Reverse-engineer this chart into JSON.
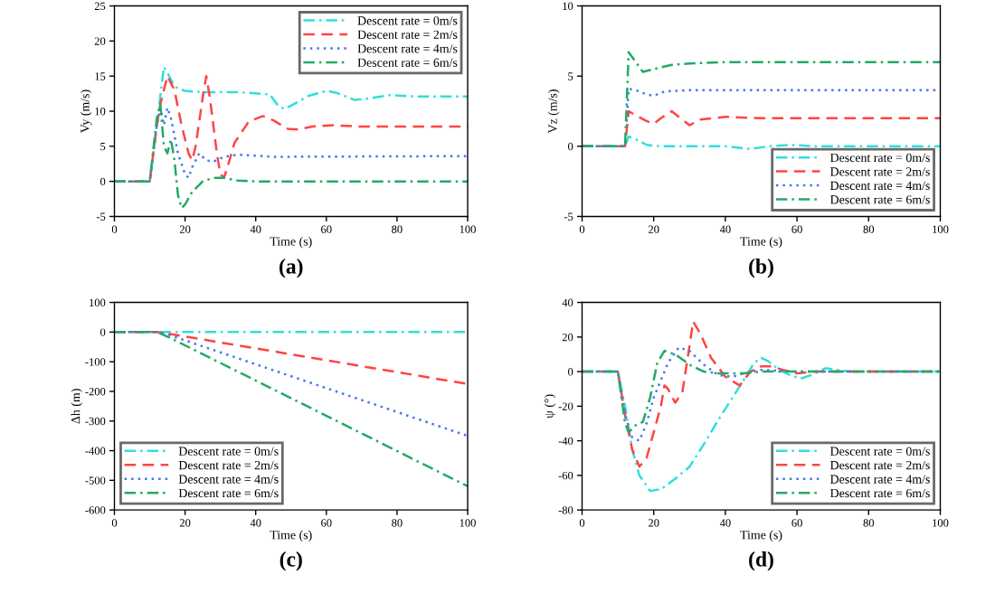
{
  "chart_data": [
    {
      "type": "line",
      "title": "(a)",
      "xlabel": "Time (s)",
      "ylabel": "Vy (m/s)",
      "xlim": [
        0,
        100
      ],
      "xticks": [
        0,
        20,
        40,
        60,
        80,
        100
      ],
      "ylim": [
        -5,
        25
      ],
      "yticks": [
        -5,
        0,
        5,
        10,
        15,
        20,
        25
      ],
      "grid": false,
      "legend": "top right",
      "series": [
        {
          "name": "Descent rate = 0m/s",
          "color": "#33dddd",
          "line_style": "dashdot",
          "x": [
            0,
            10,
            12,
            14,
            15,
            17,
            20,
            25,
            35,
            44,
            46,
            48,
            50,
            55,
            60,
            63,
            68,
            72,
            78,
            85,
            100
          ],
          "values": [
            0,
            0,
            8,
            16.3,
            15.5,
            13.5,
            12.9,
            12.7,
            12.7,
            12.4,
            11,
            10.3,
            10.8,
            12.2,
            12.9,
            12.6,
            11.6,
            11.8,
            12.3,
            12.1,
            12.1
          ]
        },
        {
          "name": "Descent rate = 2m/s",
          "color": "#ff4444",
          "line_style": "dashed",
          "x": [
            0,
            10,
            12,
            13,
            15,
            17,
            19,
            21,
            22,
            23,
            25,
            26,
            27,
            29,
            30,
            31,
            32,
            34,
            38,
            42,
            45,
            49,
            52,
            56,
            62,
            70,
            100
          ],
          "values": [
            0,
            0,
            8,
            11,
            15,
            13,
            8,
            4,
            3,
            5,
            12,
            15,
            12,
            4,
            1,
            0.5,
            2,
            5.5,
            8.5,
            9.3,
            8.7,
            7.5,
            7.4,
            7.8,
            8,
            7.8,
            7.8
          ]
        },
        {
          "name": "Descent rate = 4m/s",
          "color": "#4477ee",
          "line_style": "dotted",
          "x": [
            0,
            10,
            12,
            13,
            14,
            15,
            16,
            18,
            20,
            21,
            22,
            24,
            26,
            28,
            31,
            35,
            45,
            100
          ],
          "values": [
            0,
            0,
            8,
            10.5,
            8,
            10.5,
            9,
            4,
            1,
            0.5,
            2,
            4,
            3,
            2.8,
            3.5,
            3.8,
            3.5,
            3.6
          ]
        },
        {
          "name": "Descent rate = 6m/s",
          "color": "#22aa66",
          "line_style": "dashdot",
          "x": [
            0,
            10,
            12,
            13,
            14,
            15,
            16,
            17,
            18,
            19,
            20,
            22,
            25,
            28,
            31,
            35,
            40,
            100
          ],
          "values": [
            0,
            0,
            9,
            11,
            5,
            4,
            6,
            3,
            -2,
            -3.8,
            -3.3,
            -1.5,
            0,
            0.5,
            0.5,
            0.1,
            0,
            0
          ]
        }
      ]
    },
    {
      "type": "line",
      "title": "(b)",
      "xlabel": "Time (s)",
      "ylabel": "Vz (m/s)",
      "xlim": [
        0,
        100
      ],
      "xticks": [
        0,
        20,
        40,
        60,
        80,
        100
      ],
      "ylim": [
        -5,
        10
      ],
      "yticks": [
        -5,
        0,
        5,
        10
      ],
      "grid": false,
      "legend": "bottom right",
      "series": [
        {
          "name": "Descent rate = 0m/s",
          "color": "#33dddd",
          "line_style": "dashdot",
          "x": [
            0,
            12,
            13,
            15,
            18,
            22,
            40,
            47,
            52,
            58,
            65,
            100
          ],
          "values": [
            0,
            0,
            0.7,
            0.5,
            0.1,
            0,
            0,
            -0.2,
            0,
            0.1,
            0,
            0
          ]
        },
        {
          "name": "Descent rate = 2m/s",
          "color": "#ff4444",
          "line_style": "dashed",
          "x": [
            0,
            12,
            13,
            15,
            18,
            20,
            22,
            25,
            27,
            30,
            33,
            40,
            50,
            100
          ],
          "values": [
            0,
            0,
            2.5,
            2.2,
            1.8,
            1.6,
            2,
            2.5,
            2.1,
            1.5,
            1.9,
            2.1,
            2,
            2
          ]
        },
        {
          "name": "Descent rate = 4m/s",
          "color": "#4477ee",
          "line_style": "dotted",
          "x": [
            0,
            12,
            13,
            15,
            18,
            20,
            23,
            30,
            100
          ],
          "values": [
            0,
            0,
            4.1,
            4,
            3.7,
            3.6,
            3.9,
            4,
            4
          ]
        },
        {
          "name": "Descent rate = 6m/s",
          "color": "#22aa66",
          "line_style": "dashdot",
          "x": [
            0,
            12,
            13,
            15,
            17,
            20,
            25,
            30,
            40,
            100
          ],
          "values": [
            0,
            0,
            6.7,
            6,
            5.3,
            5.5,
            5.8,
            5.9,
            6,
            6
          ]
        }
      ]
    },
    {
      "type": "line",
      "title": "(c)",
      "xlabel": "Time (s)",
      "ylabel": "Δh (m)",
      "xlim": [
        0,
        100
      ],
      "xticks": [
        0,
        20,
        40,
        60,
        80,
        100
      ],
      "ylim": [
        -600,
        100
      ],
      "yticks": [
        -600,
        -500,
        -400,
        -300,
        -200,
        -100,
        0,
        100
      ],
      "grid": false,
      "legend": "bottom left",
      "series": [
        {
          "name": "Descent rate = 0m/s",
          "color": "#33dddd",
          "line_style": "dashdot",
          "x": [
            0,
            100
          ],
          "values": [
            0,
            0
          ]
        },
        {
          "name": "Descent rate = 2m/s",
          "color": "#ff4444",
          "line_style": "dashed",
          "x": [
            0,
            12,
            15,
            100
          ],
          "values": [
            0,
            0,
            -5,
            -175
          ]
        },
        {
          "name": "Descent rate = 4m/s",
          "color": "#4477ee",
          "line_style": "dotted",
          "x": [
            0,
            12,
            15,
            100
          ],
          "values": [
            0,
            0,
            -8,
            -350
          ]
        },
        {
          "name": "Descent rate = 6m/s",
          "color": "#22aa66",
          "line_style": "dashdot",
          "x": [
            0,
            12,
            15,
            100
          ],
          "values": [
            0,
            0,
            -15,
            -520
          ]
        }
      ]
    },
    {
      "type": "line",
      "title": "(d)",
      "xlabel": "Time (s)",
      "ylabel": "ψ (°)",
      "xlim": [
        0,
        100
      ],
      "xticks": [
        0,
        20,
        40,
        60,
        80,
        100
      ],
      "ylim": [
        -80,
        40
      ],
      "yticks": [
        -80,
        -60,
        -40,
        -20,
        0,
        20,
        40
      ],
      "grid": false,
      "legend": "bottom right",
      "series": [
        {
          "name": "Descent rate = 0m/s",
          "color": "#33dddd",
          "line_style": "dashdot",
          "x": [
            0,
            10,
            12,
            14,
            16,
            19,
            22,
            26,
            30,
            34,
            38,
            42,
            46,
            48,
            50,
            52,
            55,
            58,
            61,
            64,
            68,
            71,
            75,
            100
          ],
          "values": [
            0,
            0,
            -20,
            -45,
            -60,
            -69,
            -68,
            -62,
            -55,
            -42,
            -28,
            -15,
            -2,
            5,
            8,
            6,
            1,
            -2,
            -4,
            -2,
            2,
            1,
            0,
            0
          ]
        },
        {
          "name": "Descent rate = 2m/s",
          "color": "#ff4444",
          "line_style": "dashed",
          "x": [
            0,
            10,
            12,
            14,
            16,
            18,
            20,
            22,
            23,
            24,
            26,
            28,
            30,
            31,
            33,
            36,
            40,
            44,
            47,
            50,
            53,
            56,
            60,
            65,
            100
          ],
          "values": [
            0,
            0,
            -25,
            -45,
            -55,
            -50,
            -35,
            -20,
            -8,
            -10,
            -18,
            -12,
            15,
            29,
            22,
            8,
            -3,
            -8,
            0,
            3,
            3,
            1,
            -1,
            0,
            0
          ]
        },
        {
          "name": "Descent rate = 4m/s",
          "color": "#4477ee",
          "line_style": "dotted",
          "x": [
            0,
            10,
            12,
            14,
            16,
            18,
            20,
            22,
            24,
            27,
            30,
            34,
            38,
            42,
            45,
            50,
            60,
            100
          ],
          "values": [
            0,
            0,
            -25,
            -38,
            -40,
            -30,
            -15,
            -5,
            5,
            14,
            12,
            4,
            -2,
            -3,
            -1,
            1,
            0,
            0
          ]
        },
        {
          "name": "Descent rate = 6m/s",
          "color": "#22aa66",
          "line_style": "dashdot",
          "x": [
            0,
            10,
            12,
            13,
            15,
            17,
            19,
            21,
            23,
            26,
            30,
            34,
            38,
            45,
            50,
            100
          ],
          "values": [
            0,
            0,
            -30,
            -35,
            -31,
            -29,
            -15,
            5,
            12,
            10,
            4,
            0,
            -1,
            -1,
            0,
            0
          ]
        }
      ]
    }
  ]
}
